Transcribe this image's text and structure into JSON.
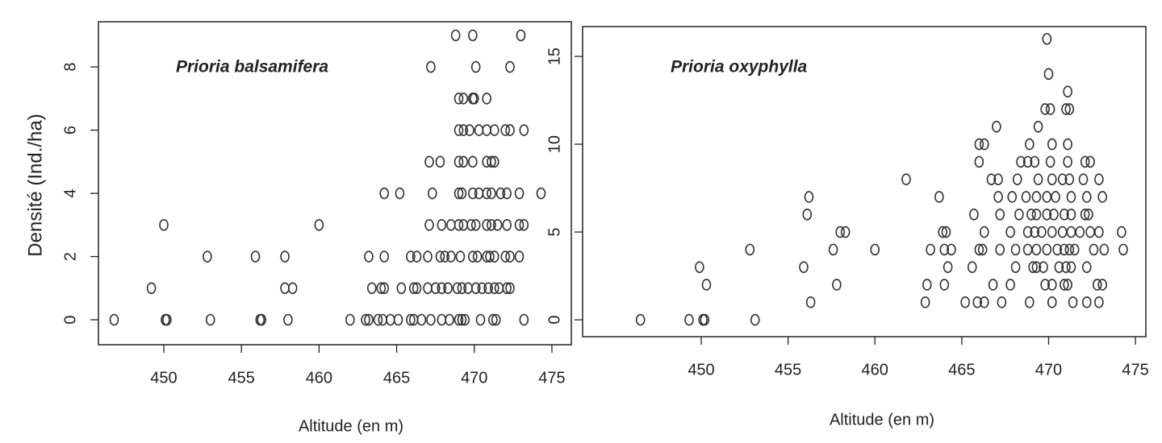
{
  "chart_data": [
    {
      "type": "scatter",
      "title": "Prioria balsamifera",
      "x_label": "Altitude (en m)",
      "y_label": "Densité (Ind./ha)",
      "x": [
        446.8,
        450.1,
        450.2,
        453,
        456.2,
        456.3,
        458,
        462,
        463,
        463.2,
        463.8,
        464.1,
        464.6,
        465.1,
        465.9,
        466.1,
        466.6,
        467.2,
        467.9,
        468.4,
        469.0,
        469.2,
        469.4,
        470.4,
        471.2,
        471.4,
        473.2,
        449.2,
        457.8,
        458.3,
        463.4,
        464.0,
        464.2,
        465.3,
        466.1,
        466.3,
        467.0,
        467.5,
        467.9,
        468.3,
        468.9,
        469.2,
        469.6,
        470.1,
        470.5,
        470.9,
        471.3,
        471.6,
        472.1,
        472.3,
        452.8,
        455.9,
        457.8,
        463.2,
        464.2,
        465.9,
        466.3,
        467.0,
        467.8,
        468.1,
        468.5,
        469.1,
        469.9,
        470.2,
        470.8,
        471.0,
        471.3,
        472.0,
        472.3,
        472.9,
        450,
        460,
        467.1,
        467.9,
        468.5,
        469.0,
        469.3,
        469.8,
        470.1,
        470.8,
        471.1,
        471.5,
        472.1,
        472.9,
        473.2,
        464.2,
        465.2,
        467.3,
        469.0,
        469.2,
        469.9,
        470.3,
        470.8,
        471.1,
        471.7,
        472.1,
        472.9,
        474.3,
        467.1,
        467.8,
        469.0,
        469.3,
        469.9,
        470.8,
        471.1,
        471.3,
        469.0,
        469.3,
        469.7,
        470.3,
        470.8,
        471.3,
        472.0,
        472.3,
        473.2,
        469.0,
        469.3,
        469.9,
        470.0,
        470.8,
        467.2,
        470.1,
        472.3,
        468.8,
        469.9,
        473.0
      ],
      "values": [
        0,
        0,
        0,
        0,
        0,
        0,
        0,
        0,
        0,
        0,
        0,
        0,
        0,
        0,
        0,
        0,
        0,
        0,
        0,
        0,
        0,
        0,
        0,
        0,
        0,
        0,
        0,
        1,
        1,
        1,
        1,
        1,
        1,
        1,
        1,
        1,
        1,
        1,
        1,
        1,
        1,
        1,
        1,
        1,
        1,
        1,
        1,
        1,
        1,
        1,
        2,
        2,
        2,
        2,
        2,
        2,
        2,
        2,
        2,
        2,
        2,
        2,
        2,
        2,
        2,
        2,
        2,
        2,
        2,
        2,
        3,
        3,
        3,
        3,
        3,
        3,
        3,
        3,
        3,
        3,
        3,
        3,
        3,
        3,
        3,
        4,
        4,
        4,
        4,
        4,
        4,
        4,
        4,
        4,
        4,
        4,
        4,
        4,
        5,
        5,
        5,
        5,
        5,
        5,
        5,
        5,
        6,
        6,
        6,
        6,
        6,
        6,
        6,
        6,
        6,
        7,
        7,
        7,
        7,
        7,
        8,
        8,
        8,
        9,
        9,
        9
      ],
      "xlim": [
        445.79,
        476.25
      ],
      "ylim": [
        -0.79,
        9.43
      ],
      "xticks": [
        450,
        455,
        460,
        465,
        470,
        475
      ],
      "yticks": [
        0,
        2,
        4,
        6,
        8
      ],
      "color": "#333333"
    },
    {
      "type": "scatter",
      "title": "Prioria oxyphylla",
      "x_label": "Altitude (en m)",
      "x": [
        446.5,
        449.3,
        450.1,
        450.2,
        453.1,
        456.3,
        462.9,
        465.2,
        465.9,
        466.3,
        467.3,
        468.9,
        470.2,
        471.4,
        472.2,
        472.9,
        450.3,
        457.8,
        463.0,
        464.0,
        466.8,
        467.8,
        469.8,
        470.2,
        470.9,
        471.1,
        472.8,
        473.1,
        449.9,
        455.9,
        464.2,
        465.6,
        468.1,
        469.1,
        469.3,
        469.7,
        470.6,
        471.0,
        471.3,
        472.2,
        452.8,
        457.6,
        460,
        463.2,
        464.0,
        464.4,
        466.0,
        466.2,
        467.2,
        468.1,
        468.8,
        469.3,
        469.9,
        470.5,
        470.9,
        471.2,
        471.5,
        472.6,
        473.2,
        474.3,
        458.0,
        458.3,
        463.9,
        464.1,
        466.3,
        467.8,
        468.8,
        469.2,
        469.6,
        470.2,
        470.8,
        471.3,
        471.8,
        472.4,
        472.9,
        474.2,
        456.1,
        465.7,
        467.2,
        468.3,
        469.0,
        469.3,
        469.9,
        470.3,
        470.9,
        471.3,
        472.1,
        472.3,
        456.2,
        463.7,
        467.1,
        467.9,
        468.7,
        469.3,
        469.9,
        470.4,
        471.3,
        472.2,
        473.1,
        461.8,
        466.7,
        467.1,
        468.2,
        469.4,
        470.2,
        470.8,
        471.2,
        472.0,
        472.9,
        466.0,
        468.4,
        468.8,
        469.2,
        470.1,
        471.1,
        472.1,
        472.4,
        466.0,
        466.3,
        468.9,
        470.2,
        471.1,
        467.0,
        469.4,
        469.8,
        470.1,
        471.0,
        471.2,
        471.1,
        470.0,
        469.9
      ],
      "values": [
        0,
        0,
        0,
        0,
        0,
        1,
        1,
        1,
        1,
        1,
        1,
        1,
        1,
        1,
        1,
        1,
        2,
        2,
        2,
        2,
        2,
        2,
        2,
        2,
        2,
        2,
        2,
        2,
        3,
        3,
        3,
        3,
        3,
        3,
        3,
        3,
        3,
        3,
        3,
        3,
        4,
        4,
        4,
        4,
        4,
        4,
        4,
        4,
        4,
        4,
        4,
        4,
        4,
        4,
        4,
        4,
        4,
        4,
        4,
        4,
        5,
        5,
        5,
        5,
        5,
        5,
        5,
        5,
        5,
        5,
        5,
        5,
        5,
        5,
        5,
        5,
        6,
        6,
        6,
        6,
        6,
        6,
        6,
        6,
        6,
        6,
        6,
        6,
        7,
        7,
        7,
        7,
        7,
        7,
        7,
        7,
        7,
        7,
        7,
        8,
        8,
        8,
        8,
        8,
        8,
        8,
        8,
        8,
        8,
        9,
        9,
        9,
        9,
        9,
        9,
        9,
        9,
        10,
        10,
        10,
        10,
        10,
        11,
        11,
        12,
        12,
        12,
        12,
        13,
        14,
        16
      ],
      "xlim": [
        443.17,
        475.6
      ],
      "ylim": [
        -0.96,
        16.7
      ],
      "xticks": [
        450,
        455,
        460,
        465,
        470,
        475
      ],
      "yticks": [
        0,
        5,
        10,
        15
      ],
      "color": "#333333"
    }
  ]
}
